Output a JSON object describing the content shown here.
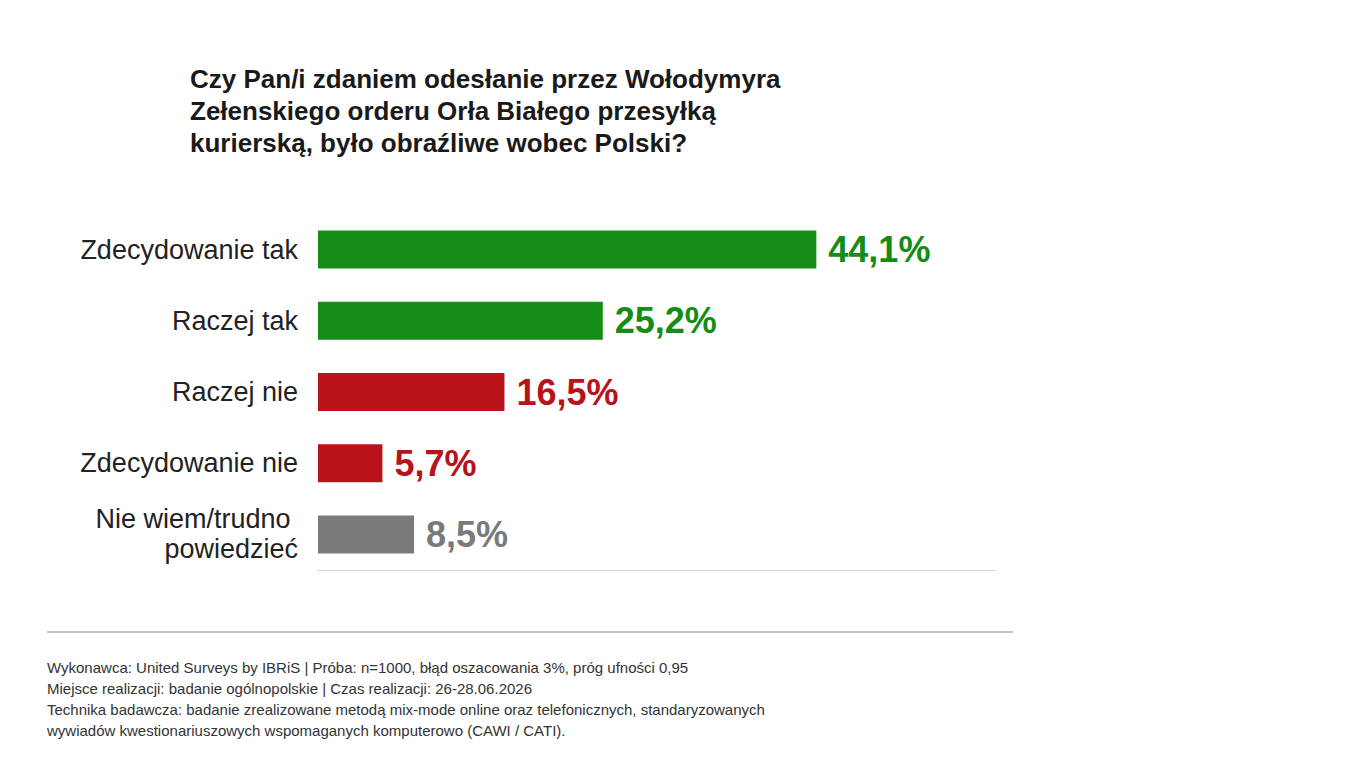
{
  "chart_data": {
    "type": "bar",
    "orientation": "horizontal",
    "title": "Czy Pan/i zdaniem odesłanie przez Wołodymyra Zełenskiego orderu Orła Białego przesyłką kurierską, było obraźliwe wobec Polski?",
    "categories": [
      "Zdecydowanie tak",
      "Raczej tak",
      "Raczej nie",
      "Zdecydowanie nie",
      "Nie wiem/trudno powiedzieć"
    ],
    "values": [
      44.1,
      25.2,
      16.5,
      5.7,
      8.5
    ],
    "value_labels": [
      "44,1%",
      "25,2%",
      "16,5%",
      "5,7%",
      "8,5%"
    ],
    "colors": [
      "#158c15",
      "#158c15",
      "#b8121a",
      "#b8121a",
      "#7a7a7a"
    ],
    "xlim": [
      0,
      60
    ],
    "data_labels": true,
    "tick_labels": "y",
    "grid": false,
    "footer": [
      "Wykonawca: United Surveys by IBRiS | Próba: n=1000, błąd oszacowania 3%, próg ufności 0,95",
      "Miejsce realizacji: badanie ogólnopolskie | Czas realizacji: 26-28.06.2026",
      "Technika badawcza: badanie zrealizowane metodą mix-mode online oraz telefonicznych, standaryzowanych wywiadów kwestionariuszowych wspomaganych komputerowo (CAWI / CATI)."
    ]
  }
}
